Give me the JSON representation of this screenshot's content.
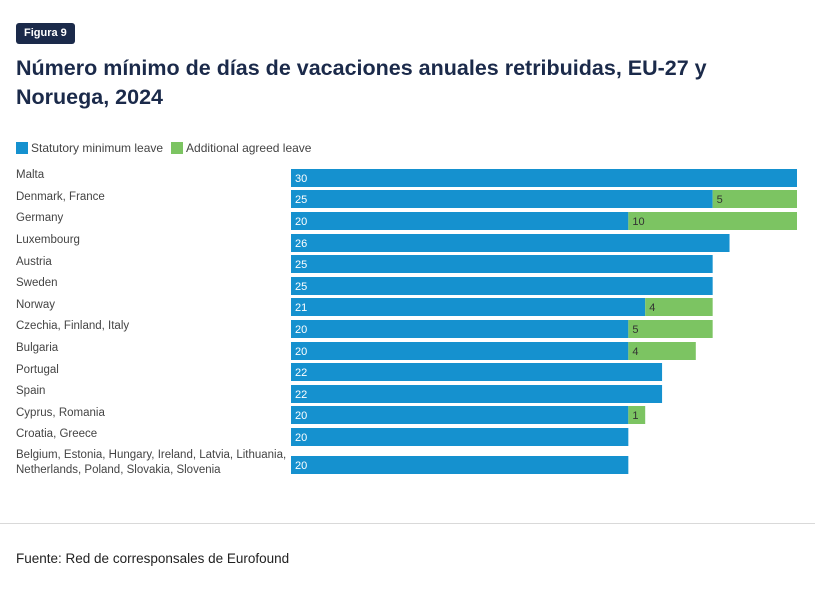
{
  "figure_label": "Figura 9",
  "title": "Número mínimo de días de vacaciones anuales retribuidas, EU-27 y Noruega, 2024",
  "legend": [
    {
      "label": "Statutory minimum leave",
      "color": "#1591cf"
    },
    {
      "label": "Additional agreed leave",
      "color": "#7cc462"
    }
  ],
  "source": "Fuente: Red de corresponsales de Eurofound",
  "chart_data": {
    "type": "bar",
    "orientation": "horizontal",
    "stacked": true,
    "categories": [
      [
        "Malta"
      ],
      [
        "Denmark, France"
      ],
      [
        "Germany"
      ],
      [
        "Luxembourg"
      ],
      [
        "Austria"
      ],
      [
        "Sweden"
      ],
      [
        "Norway"
      ],
      [
        "Czechia, Finland, Italy"
      ],
      [
        "Bulgaria"
      ],
      [
        "Portugal"
      ],
      [
        "Spain"
      ],
      [
        "Cyprus, Romania"
      ],
      [
        "Croatia, Greece"
      ],
      [
        "Belgium, Estonia, Hungary, Ireland, Latvia, Lithuania,",
        "Netherlands, Poland, Slovakia, Slovenia"
      ]
    ],
    "series": [
      {
        "name": "Statutory minimum leave",
        "color": "#1591cf",
        "values": [
          30,
          25,
          20,
          26,
          25,
          25,
          21,
          20,
          20,
          22,
          22,
          20,
          20,
          20
        ]
      },
      {
        "name": "Additional agreed leave",
        "color": "#7cc462",
        "values": [
          null,
          5,
          10,
          null,
          null,
          null,
          4,
          5,
          4,
          null,
          null,
          1,
          null,
          null
        ]
      }
    ],
    "xlim": [
      0,
      30
    ],
    "grid": false,
    "legend_position": "top-left"
  }
}
